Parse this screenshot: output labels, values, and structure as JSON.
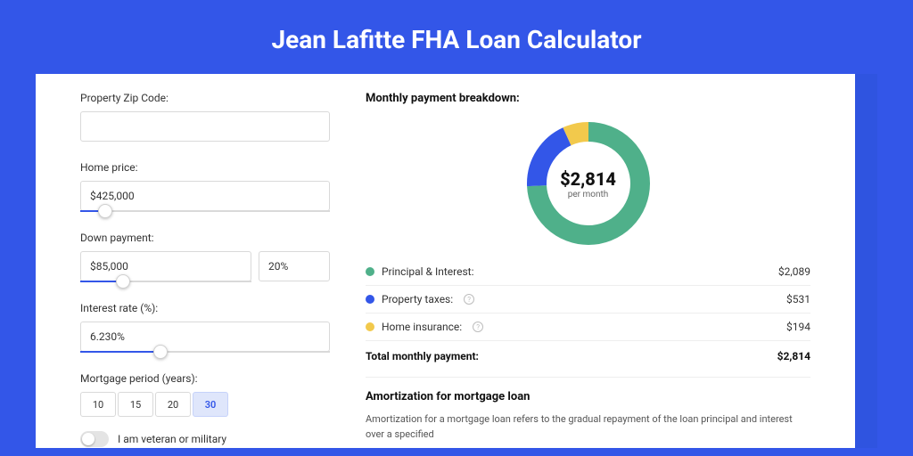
{
  "title": "Jean Lafitte FHA Loan Calculator",
  "colors": {
    "page_bg": "#3356e8",
    "accent": "#3356e8"
  },
  "form": {
    "zip": {
      "label": "Property Zip Code:",
      "value": ""
    },
    "home_price": {
      "label": "Home price:",
      "value": "$425,000",
      "slider_pct": 10
    },
    "down_payment": {
      "label": "Down payment:",
      "value": "$85,000",
      "pct_value": "20%",
      "slider_pct": 25
    },
    "interest_rate": {
      "label": "Interest rate (%):",
      "value": "6.230%",
      "slider_pct": 32
    },
    "mortgage_period": {
      "label": "Mortgage period (years):",
      "options": [
        "10",
        "15",
        "20",
        "30"
      ],
      "selected": "30"
    },
    "veteran": {
      "label": "I am veteran or military",
      "checked": false
    }
  },
  "breakdown": {
    "title": "Monthly payment breakdown:",
    "center_amount": "$2,814",
    "center_sub": "per month",
    "items": [
      {
        "label": "Principal & Interest:",
        "value": "$2,089",
        "color": "#4fb08a",
        "info": false,
        "pct": 74.2
      },
      {
        "label": "Property taxes:",
        "value": "$531",
        "color": "#3356e8",
        "info": true,
        "pct": 18.9
      },
      {
        "label": "Home insurance:",
        "value": "$194",
        "color": "#f2c94c",
        "info": true,
        "pct": 6.9
      }
    ],
    "total_label": "Total monthly payment:",
    "total_value": "$2,814"
  },
  "amortization": {
    "title": "Amortization for mortgage loan",
    "text": "Amortization for a mortgage loan refers to the gradual repayment of the loan principal and interest over a specified"
  }
}
